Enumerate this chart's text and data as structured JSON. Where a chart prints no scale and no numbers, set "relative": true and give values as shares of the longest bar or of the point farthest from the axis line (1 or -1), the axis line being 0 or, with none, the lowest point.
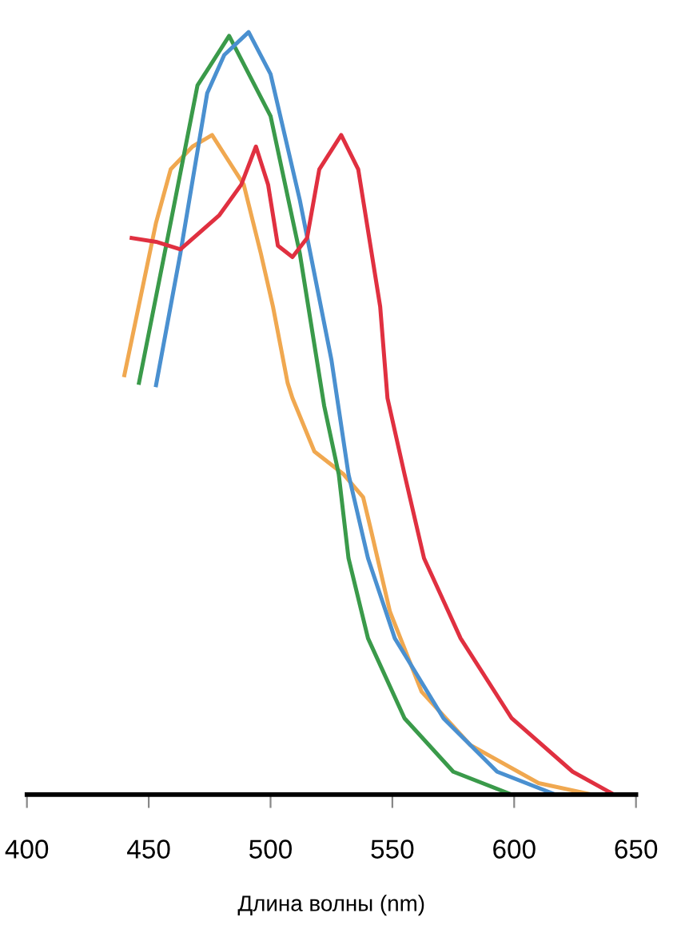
{
  "chart_data": {
    "type": "line",
    "relative": true,
    "xlabel": "Длина волны (nm)",
    "xlim": [
      400,
      650
    ],
    "xticks": [
      400,
      450,
      500,
      550,
      600,
      650
    ],
    "grid": false,
    "legend": false,
    "marker": "none",
    "line_style": "solid",
    "series": [
      {
        "color": "#f0a850",
        "x": [
          440,
          453,
          459,
          468,
          476,
          481,
          489,
          496,
          501,
          507,
          509,
          518,
          530,
          538,
          541,
          549,
          562,
          582,
          610,
          632
        ],
        "values": [
          0.55,
          0.75,
          0.82,
          0.85,
          0.865,
          0.84,
          0.8,
          0.71,
          0.64,
          0.54,
          0.52,
          0.45,
          0.42,
          0.39,
          0.35,
          0.24,
          0.135,
          0.065,
          0.015,
          0
        ]
      },
      {
        "color": "#3a9a4a",
        "x": [
          446,
          459,
          470,
          483,
          500,
          512,
          522,
          528,
          532,
          540,
          555,
          575,
          599
        ],
        "values": [
          0.54,
          0.75,
          0.93,
          0.995,
          0.89,
          0.71,
          0.51,
          0.42,
          0.31,
          0.205,
          0.1,
          0.03,
          0
        ]
      },
      {
        "color": "#4a90d0",
        "x": [
          453,
          463,
          474,
          481,
          491,
          500,
          512,
          525,
          532,
          540,
          551,
          571,
          593,
          617
        ],
        "values": [
          0.537,
          0.71,
          0.92,
          0.97,
          1,
          0.945,
          0.78,
          0.57,
          0.42,
          0.31,
          0.205,
          0.1,
          0.03,
          0
        ]
      },
      {
        "color": "#e03040",
        "x": [
          443,
          453,
          463,
          479,
          488,
          494,
          499,
          503,
          509,
          515,
          520,
          529,
          536,
          545,
          548,
          555,
          563,
          578,
          599,
          624,
          641
        ],
        "values": [
          0.73,
          0.725,
          0.715,
          0.76,
          0.8,
          0.85,
          0.8,
          0.72,
          0.705,
          0.73,
          0.82,
          0.865,
          0.82,
          0.64,
          0.52,
          0.42,
          0.31,
          0.205,
          0.1,
          0.03,
          0
        ]
      }
    ]
  }
}
